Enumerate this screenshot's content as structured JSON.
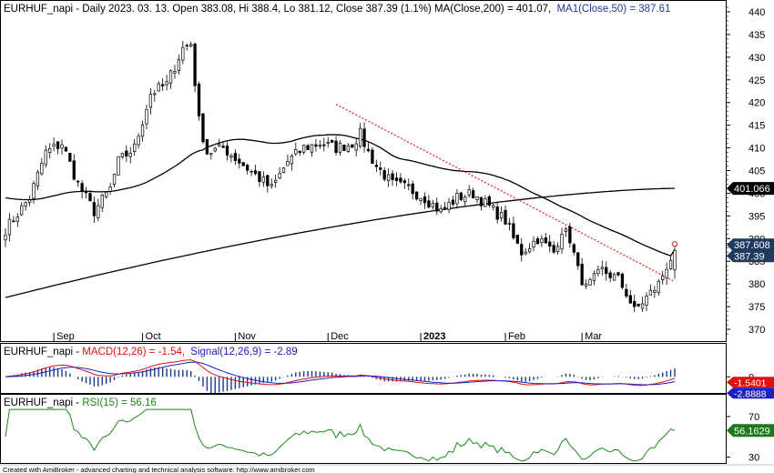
{
  "main_panel": {
    "symbol": "EURHUF_napi",
    "period": "Daily",
    "date": "2023. 03. 13.",
    "info_prefix": "EURHUF_napi - Daily 2023. 03. 13. Open 383.08, Hi 388.4, Lo 381.12, Close 387.39 (1.1%) MA(Close,200) = 401.07,",
    "ma50_label": "MA1(Close,50) = 387.61",
    "open": 383.08,
    "high": 388.4,
    "low": 381.12,
    "close": 387.39,
    "change_pct": "1.1%",
    "ma200_value": 401.07,
    "ma50_value": 387.61,
    "y_ticks": [
      "440",
      "435",
      "430",
      "425",
      "420",
      "415",
      "410",
      "405",
      "400",
      "395",
      "390",
      "385",
      "380",
      "375",
      "370"
    ],
    "x_labels": [
      {
        "label": "Sep",
        "bold": false
      },
      {
        "label": "Oct",
        "bold": false
      },
      {
        "label": "Nov",
        "bold": false
      },
      {
        "label": "Dec",
        "bold": false
      },
      {
        "label": "2023",
        "bold": true
      },
      {
        "label": "Feb",
        "bold": false
      },
      {
        "label": "Mar",
        "bold": false
      }
    ],
    "badges": [
      {
        "text": "401.066",
        "color": "#000000"
      },
      {
        "text": "387.608",
        "color": "#1f3a5f"
      },
      {
        "text": "387.39",
        "color": "#1f3a5f"
      }
    ]
  },
  "macd_panel": {
    "prefix": "EURHUF_napi - ",
    "macd_label": "MACD(12,26) = -1.54,",
    "signal_label": "Signal(12,26,9) = -2.89",
    "tick": "0",
    "badges": [
      {
        "text": "-1.5401",
        "color": "#e01010"
      },
      {
        "text": "-2.8888",
        "color": "#2020c0"
      }
    ]
  },
  "rsi_panel": {
    "prefix": "EURHUF_napi - ",
    "rsi_label": "RSI(15) = 56.16",
    "ticks": [
      "70",
      "30"
    ],
    "badge": {
      "text": "56.1629",
      "color": "#1a7a1a"
    }
  },
  "footer": {
    "credit": "Created with AmiBroker - advanced charting and technical analysis software. http://www.amibroker.com"
  },
  "colors": {
    "candle_up": "#ffffff",
    "candle_down": "#000000",
    "ma50": "#000000",
    "ma200": "#000000",
    "trendline": "#e02020",
    "macd": "#e01010",
    "signal": "#2020c0",
    "rsi": "#1a8a1a"
  },
  "chart_data": {
    "type": "candlestick",
    "title": "EURHUF_napi - Daily",
    "ylim": [
      368,
      442
    ],
    "series": [
      {
        "name": "Price",
        "x_start": "2022-08-16",
        "x_end": "2023-03-13",
        "anchors": [
          [
            0,
            392
          ],
          [
            6,
            399
          ],
          [
            10,
            409
          ],
          [
            14,
            411
          ],
          [
            18,
            402
          ],
          [
            22,
            396
          ],
          [
            26,
            401
          ],
          [
            28,
            407
          ],
          [
            32,
            410
          ],
          [
            36,
            422
          ],
          [
            40,
            424
          ],
          [
            44,
            432
          ],
          [
            46,
            433
          ],
          [
            48,
            416
          ],
          [
            50,
            409
          ],
          [
            54,
            410
          ],
          [
            58,
            407
          ],
          [
            62,
            404
          ],
          [
            66,
            401
          ],
          [
            70,
            407
          ],
          [
            74,
            410
          ],
          [
            78,
            411
          ],
          [
            82,
            410
          ],
          [
            86,
            411
          ],
          [
            88,
            413
          ],
          [
            90,
            409
          ],
          [
            92,
            406
          ],
          [
            96,
            402
          ],
          [
            100,
            401
          ],
          [
            104,
            399
          ],
          [
            108,
            396
          ],
          [
            112,
            399
          ],
          [
            116,
            400
          ],
          [
            120,
            397
          ],
          [
            124,
            394
          ],
          [
            126,
            390
          ],
          [
            128,
            387
          ],
          [
            132,
            390
          ],
          [
            136,
            387
          ],
          [
            138,
            392
          ],
          [
            140,
            390
          ],
          [
            142,
            383
          ],
          [
            144,
            379
          ],
          [
            148,
            383
          ],
          [
            152,
            381
          ],
          [
            154,
            378
          ],
          [
            156,
            374
          ],
          [
            160,
            378
          ],
          [
            162,
            380
          ],
          [
            164,
            384
          ],
          [
            166,
            387.39
          ]
        ]
      },
      {
        "name": "MA(Close,200)",
        "start": 377,
        "end": 401.07
      },
      {
        "name": "MA1(Close,50)",
        "end": 387.61
      }
    ],
    "macd": {
      "name": "MACD(12,26)",
      "value": -1.54,
      "ylim": [
        -6,
        8
      ]
    },
    "signal": {
      "name": "Signal(12,26,9)",
      "value": -2.89
    },
    "rsi": {
      "name": "RSI(15)",
      "value": 56.16,
      "ylim": [
        25,
        78
      ]
    }
  }
}
